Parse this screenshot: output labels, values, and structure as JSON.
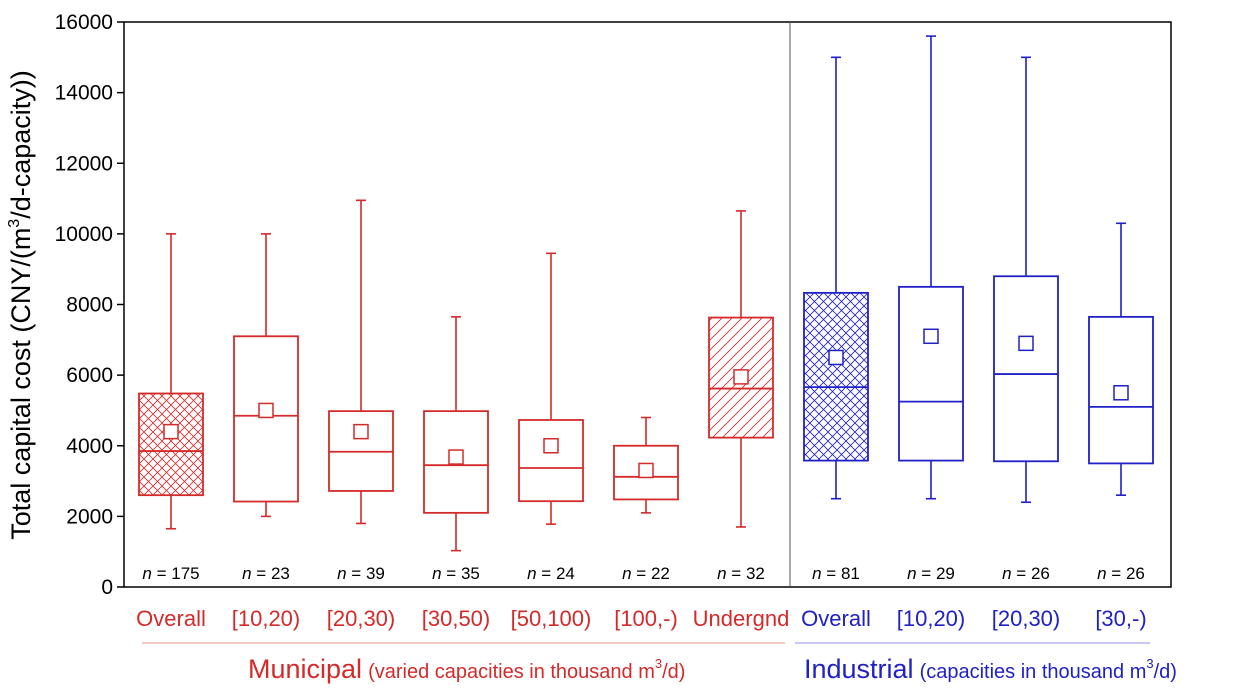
{
  "chart_data": {
    "type": "boxplot",
    "ylabel_main": "Total capital cost (CNY/(m",
    "ylabel_sup": "3",
    "ylabel_tail": "/d-capacity))",
    "ylim": [
      0,
      16000
    ],
    "yticks": [
      0,
      2000,
      4000,
      6000,
      8000,
      10000,
      12000,
      14000,
      16000
    ],
    "n_prefix": "n",
    "groups": [
      {
        "name": "Municipal",
        "subtitle_pre": "(varied capacities in thousand m",
        "subtitle_sup": "3",
        "subtitle_post": "/d)",
        "color": "#d42a2a",
        "boxes": [
          {
            "label": "Overall",
            "n": "175",
            "whisker_low": 1650,
            "q1": 2600,
            "median": 3850,
            "q3": 5480,
            "whisker_high": 10000,
            "mean": 4400,
            "pattern": "crosshatch"
          },
          {
            "label": "[10,20)",
            "n": "23",
            "whisker_low": 2000,
            "q1": 2420,
            "median": 4850,
            "q3": 7100,
            "whisker_high": 10000,
            "mean": 5000,
            "pattern": "none"
          },
          {
            "label": "[20,30)",
            "n": "39",
            "whisker_low": 1800,
            "q1": 2720,
            "median": 3830,
            "q3": 4980,
            "whisker_high": 10950,
            "mean": 4400,
            "pattern": "none"
          },
          {
            "label": "[30,50)",
            "n": "35",
            "whisker_low": 1030,
            "q1": 2100,
            "median": 3450,
            "q3": 4980,
            "whisker_high": 7650,
            "mean": 3680,
            "pattern": "none"
          },
          {
            "label": "[50,100)",
            "n": "24",
            "whisker_low": 1780,
            "q1": 2430,
            "median": 3370,
            "q3": 4730,
            "whisker_high": 9450,
            "mean": 4000,
            "pattern": "none"
          },
          {
            "label": "[100,-)",
            "n": "22",
            "whisker_low": 2100,
            "q1": 2480,
            "median": 3120,
            "q3": 4000,
            "whisker_high": 4800,
            "mean": 3300,
            "pattern": "none"
          },
          {
            "label": "Undergnd",
            "n": "32",
            "whisker_low": 1700,
            "q1": 4230,
            "median": 5620,
            "q3": 7630,
            "whisker_high": 10650,
            "mean": 5950,
            "pattern": "diagonal"
          }
        ]
      },
      {
        "name": "Industrial",
        "subtitle_pre": "(capacities in thousand m",
        "subtitle_sup": "3",
        "subtitle_post": "/d)",
        "color": "#2020c8",
        "boxes": [
          {
            "label": "Overall",
            "n": "81",
            "whisker_low": 2500,
            "q1": 3580,
            "median": 5660,
            "q3": 8330,
            "whisker_high": 15000,
            "mean": 6500,
            "pattern": "crosshatch"
          },
          {
            "label": "[10,20)",
            "n": "29",
            "whisker_low": 2500,
            "q1": 3580,
            "median": 5250,
            "q3": 8500,
            "whisker_high": 15600,
            "mean": 7100,
            "pattern": "none"
          },
          {
            "label": "[20,30)",
            "n": "26",
            "whisker_low": 2400,
            "q1": 3560,
            "median": 6030,
            "q3": 8800,
            "whisker_high": 15000,
            "mean": 6900,
            "pattern": "none"
          },
          {
            "label": "[30,-)",
            "n": "26",
            "whisker_low": 2600,
            "q1": 3500,
            "median": 5100,
            "q3": 7650,
            "whisker_high": 10300,
            "mean": 5500,
            "pattern": "none"
          }
        ]
      }
    ]
  }
}
